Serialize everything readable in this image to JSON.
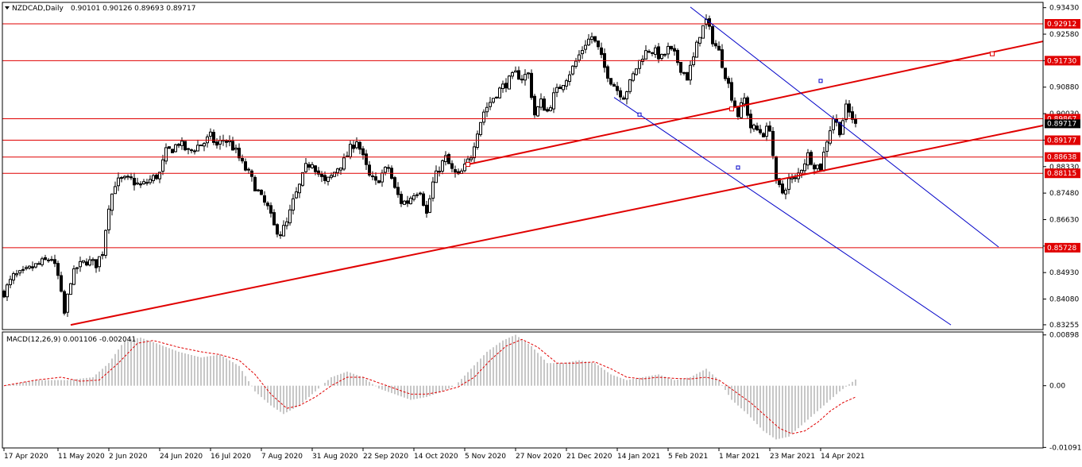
{
  "header": {
    "symbol": "NZDCAD,Daily",
    "ohlc": "0.90101 0.90126 0.89693 0.89717"
  },
  "colors": {
    "background": "#ffffff",
    "candle": "#000000",
    "grid_frame": "#000000",
    "hline": "#e00000",
    "trendline": "#e00000",
    "channel": "#0000c8",
    "macd_hist": "#b4b4b4",
    "macd_signal": "#e00000",
    "label_text": "#ffffff",
    "axis_text": "#000000"
  },
  "chart_data": [
    {
      "type": "candlestick",
      "title": "NZDCAD,Daily",
      "ylim": [
        0.831,
        0.936
      ],
      "y_ticks": [
        "0.93430",
        "0.92580",
        "0.91730",
        "0.90880",
        "0.90030",
        "0.89180",
        "0.88330",
        "0.87480",
        "0.86630",
        "0.85780",
        "0.84930",
        "0.84080",
        "0.83255"
      ],
      "x_ticks": [
        "17 Apr 2020",
        "11 May 2020",
        "2 Jun 2020",
        "24 Jun 2020",
        "16 Jul 2020",
        "7 Aug 2020",
        "31 Aug 2020",
        "22 Sep 2020",
        "14 Oct 2020",
        "5 Nov 2020",
        "27 Nov 2020",
        "21 Dec 2020",
        "14 Jan 2021",
        "5 Feb 2021",
        "1 Mar 2021",
        "23 Mar 2021",
        "14 Apr 2021"
      ],
      "x_tick_bars": [
        0,
        17,
        33,
        49,
        65,
        81,
        97,
        113,
        129,
        145,
        161,
        177,
        193,
        209,
        225,
        241,
        257
      ],
      "total_bars": 330,
      "closes_anchor": [
        [
          0,
          0.843
        ],
        [
          3,
          0.848
        ],
        [
          6,
          0.849
        ],
        [
          9,
          0.851
        ],
        [
          12,
          0.8525
        ],
        [
          15,
          0.854
        ],
        [
          17,
          0.848
        ],
        [
          19,
          0.836
        ],
        [
          21,
          0.847
        ],
        [
          23,
          0.851
        ],
        [
          26,
          0.853
        ],
        [
          29,
          0.852
        ],
        [
          31,
          0.856
        ],
        [
          33,
          0.871
        ],
        [
          35,
          0.878
        ],
        [
          37,
          0.879
        ],
        [
          40,
          0.879
        ],
        [
          43,
          0.877
        ],
        [
          46,
          0.879
        ],
        [
          49,
          0.881
        ],
        [
          51,
          0.888
        ],
        [
          53,
          0.889
        ],
        [
          55,
          0.891
        ],
        [
          58,
          0.888
        ],
        [
          61,
          0.89
        ],
        [
          63,
          0.891
        ],
        [
          65,
          0.893
        ],
        [
          67,
          0.89
        ],
        [
          69,
          0.892
        ],
        [
          71,
          0.891
        ],
        [
          73,
          0.888
        ],
        [
          75,
          0.884
        ],
        [
          77,
          0.881
        ],
        [
          79,
          0.877
        ],
        [
          81,
          0.873
        ],
        [
          83,
          0.87
        ],
        [
          85,
          0.864
        ],
        [
          87,
          0.862
        ],
        [
          89,
          0.865
        ],
        [
          91,
          0.872
        ],
        [
          93,
          0.877
        ],
        [
          95,
          0.883
        ],
        [
          97,
          0.885
        ],
        [
          99,
          0.881
        ],
        [
          101,
          0.878
        ],
        [
          103,
          0.88
        ],
        [
          105,
          0.883
        ],
        [
          107,
          0.885
        ],
        [
          109,
          0.889
        ],
        [
          111,
          0.892
        ],
        [
          113,
          0.886
        ],
        [
          115,
          0.88
        ],
        [
          117,
          0.878
        ],
        [
          119,
          0.881
        ],
        [
          121,
          0.883
        ],
        [
          123,
          0.876
        ],
        [
          125,
          0.872
        ],
        [
          127,
          0.872
        ],
        [
          129,
          0.875
        ],
        [
          131,
          0.876
        ],
        [
          133,
          0.868
        ],
        [
          135,
          0.878
        ],
        [
          137,
          0.883
        ],
        [
          139,
          0.886
        ],
        [
          141,
          0.882
        ],
        [
          143,
          0.88
        ],
        [
          145,
          0.883
        ],
        [
          147,
          0.887
        ],
        [
          149,
          0.895
        ],
        [
          151,
          0.901
        ],
        [
          153,
          0.904
        ],
        [
          155,
          0.907
        ],
        [
          157,
          0.909
        ],
        [
          159,
          0.911
        ],
        [
          161,
          0.913
        ],
        [
          163,
          0.912
        ],
        [
          165,
          0.913
        ],
        [
          167,
          0.9
        ],
        [
          169,
          0.904
        ],
        [
          171,
          0.901
        ],
        [
          173,
          0.906
        ],
        [
          175,
          0.909
        ],
        [
          177,
          0.912
        ],
        [
          179,
          0.915
        ],
        [
          181,
          0.919
        ],
        [
          183,
          0.923
        ],
        [
          185,
          0.925
        ],
        [
          187,
          0.921
        ],
        [
          189,
          0.915
        ],
        [
          191,
          0.911
        ],
        [
          193,
          0.908
        ],
        [
          195,
          0.906
        ],
        [
          197,
          0.91
        ],
        [
          199,
          0.915
        ],
        [
          201,
          0.919
        ],
        [
          203,
          0.921
        ],
        [
          205,
          0.92
        ],
        [
          207,
          0.918
        ],
        [
          209,
          0.921
        ],
        [
          211,
          0.919
        ],
        [
          213,
          0.915
        ],
        [
          215,
          0.912
        ],
        [
          217,
          0.918
        ],
        [
          219,
          0.926
        ],
        [
          221,
          0.93
        ],
        [
          223,
          0.924
        ],
        [
          225,
          0.92
        ],
        [
          227,
          0.913
        ],
        [
          229,
          0.906
        ],
        [
          231,
          0.9
        ],
        [
          233,
          0.905
        ],
        [
          235,
          0.896
        ],
        [
          237,
          0.895
        ],
        [
          239,
          0.894
        ],
        [
          241,
          0.896
        ],
        [
          243,
          0.878
        ],
        [
          245,
          0.875
        ],
        [
          247,
          0.879
        ],
        [
          249,
          0.879
        ],
        [
          251,
          0.883
        ],
        [
          253,
          0.887
        ],
        [
          255,
          0.884
        ],
        [
          257,
          0.883
        ],
        [
          259,
          0.892
        ],
        [
          261,
          0.899
        ],
        [
          263,
          0.895
        ],
        [
          265,
          0.902
        ],
        [
          267,
          0.899
        ],
        [
          268,
          0.8972
        ]
      ],
      "hlines": [
        0.92912,
        0.9173,
        0.89867,
        0.89177,
        0.88638,
        0.88115,
        0.85728
      ],
      "hline_labels": [
        "0.92912",
        "0.91730",
        "0.89867",
        "0.89177",
        "0.88638",
        "0.88115",
        "0.85728"
      ],
      "current_price_label": "0.89717",
      "current_price": 0.89717,
      "trend_lower": [
        [
          21,
          0.8325
        ],
        [
          329,
          0.8965
        ]
      ],
      "trend_upper": [
        [
          146,
          0.884
        ],
        [
          329,
          0.9235
        ]
      ],
      "trend_upper_markers": [
        [
          146,
          0.884
        ],
        [
          229,
          0.9018
        ],
        [
          311,
          0.9195
        ]
      ],
      "channel_upper": [
        [
          216,
          0.9345
        ],
        [
          313,
          0.8575
        ]
      ],
      "channel_lower": [
        [
          192,
          0.9055
        ],
        [
          298,
          0.8325
        ]
      ],
      "channel_markers": [
        [
          257,
          0.9108
        ],
        [
          200,
          0.9
        ],
        [
          231,
          0.883
        ]
      ]
    },
    {
      "type": "macd",
      "title": "MACD(12,26,9) 0.001106 -0.002041",
      "params": "12,26,9",
      "macd": 0.001106,
      "signal": -0.002041,
      "ylim": [
        -0.011,
        0.0095
      ],
      "y_ticks": [
        "0.00898",
        "0.00",
        "-0.01091"
      ],
      "hist_anchor": [
        [
          0,
          0.0
        ],
        [
          10,
          0.001
        ],
        [
          20,
          0.001
        ],
        [
          28,
          0.0015
        ],
        [
          33,
          0.004
        ],
        [
          38,
          0.008
        ],
        [
          43,
          0.0085
        ],
        [
          48,
          0.0075
        ],
        [
          55,
          0.006
        ],
        [
          62,
          0.005
        ],
        [
          68,
          0.0055
        ],
        [
          74,
          0.0035
        ],
        [
          79,
          -0.001
        ],
        [
          84,
          -0.0035
        ],
        [
          88,
          -0.005
        ],
        [
          93,
          -0.0035
        ],
        [
          98,
          -0.001
        ],
        [
          103,
          0.0015
        ],
        [
          108,
          0.0025
        ],
        [
          113,
          0.0015
        ],
        [
          118,
          -0.0005
        ],
        [
          123,
          -0.0015
        ],
        [
          128,
          -0.0025
        ],
        [
          133,
          -0.002
        ],
        [
          138,
          -0.001
        ],
        [
          142,
          0.0
        ],
        [
          147,
          0.003
        ],
        [
          152,
          0.006
        ],
        [
          157,
          0.008
        ],
        [
          161,
          0.009
        ],
        [
          166,
          0.007
        ],
        [
          171,
          0.004
        ],
        [
          176,
          0.004
        ],
        [
          181,
          0.0045
        ],
        [
          186,
          0.004
        ],
        [
          191,
          0.002
        ],
        [
          196,
          0.001
        ],
        [
          201,
          0.0015
        ],
        [
          206,
          0.002
        ],
        [
          211,
          0.001
        ],
        [
          216,
          0.0015
        ],
        [
          221,
          0.003
        ],
        [
          225,
          0.001
        ],
        [
          229,
          -0.0025
        ],
        [
          234,
          -0.005
        ],
        [
          239,
          -0.008
        ],
        [
          243,
          -0.0095
        ],
        [
          247,
          -0.009
        ],
        [
          251,
          -0.007
        ],
        [
          255,
          -0.005
        ],
        [
          259,
          -0.003
        ],
        [
          263,
          -0.001
        ],
        [
          268,
          0.0011
        ]
      ],
      "signal_anchor": [
        [
          0,
          0.0
        ],
        [
          10,
          0.001
        ],
        [
          18,
          0.0015
        ],
        [
          24,
          0.0008
        ],
        [
          30,
          0.001
        ],
        [
          36,
          0.004
        ],
        [
          42,
          0.0075
        ],
        [
          47,
          0.008
        ],
        [
          55,
          0.0068
        ],
        [
          62,
          0.006
        ],
        [
          68,
          0.0055
        ],
        [
          74,
          0.0045
        ],
        [
          79,
          0.002
        ],
        [
          84,
          -0.0015
        ],
        [
          89,
          -0.004
        ],
        [
          93,
          -0.0035
        ],
        [
          98,
          -0.002
        ],
        [
          103,
          0.0
        ],
        [
          108,
          0.0015
        ],
        [
          113,
          0.0015
        ],
        [
          118,
          0.0005
        ],
        [
          123,
          -0.0005
        ],
        [
          128,
          -0.0015
        ],
        [
          133,
          -0.0015
        ],
        [
          138,
          -0.001
        ],
        [
          143,
          -0.0002
        ],
        [
          148,
          0.0015
        ],
        [
          153,
          0.0045
        ],
        [
          158,
          0.007
        ],
        [
          163,
          0.0082
        ],
        [
          168,
          0.0068
        ],
        [
          174,
          0.004
        ],
        [
          180,
          0.004
        ],
        [
          186,
          0.0042
        ],
        [
          191,
          0.003
        ],
        [
          196,
          0.0015
        ],
        [
          201,
          0.0012
        ],
        [
          206,
          0.0015
        ],
        [
          211,
          0.0013
        ],
        [
          216,
          0.0012
        ],
        [
          221,
          0.0015
        ],
        [
          225,
          0.001
        ],
        [
          230,
          -0.001
        ],
        [
          235,
          -0.003
        ],
        [
          240,
          -0.0055
        ],
        [
          244,
          -0.0075
        ],
        [
          248,
          -0.0085
        ],
        [
          252,
          -0.008
        ],
        [
          256,
          -0.0065
        ],
        [
          260,
          -0.0045
        ],
        [
          264,
          -0.003
        ],
        [
          268,
          -0.002
        ]
      ]
    }
  ]
}
